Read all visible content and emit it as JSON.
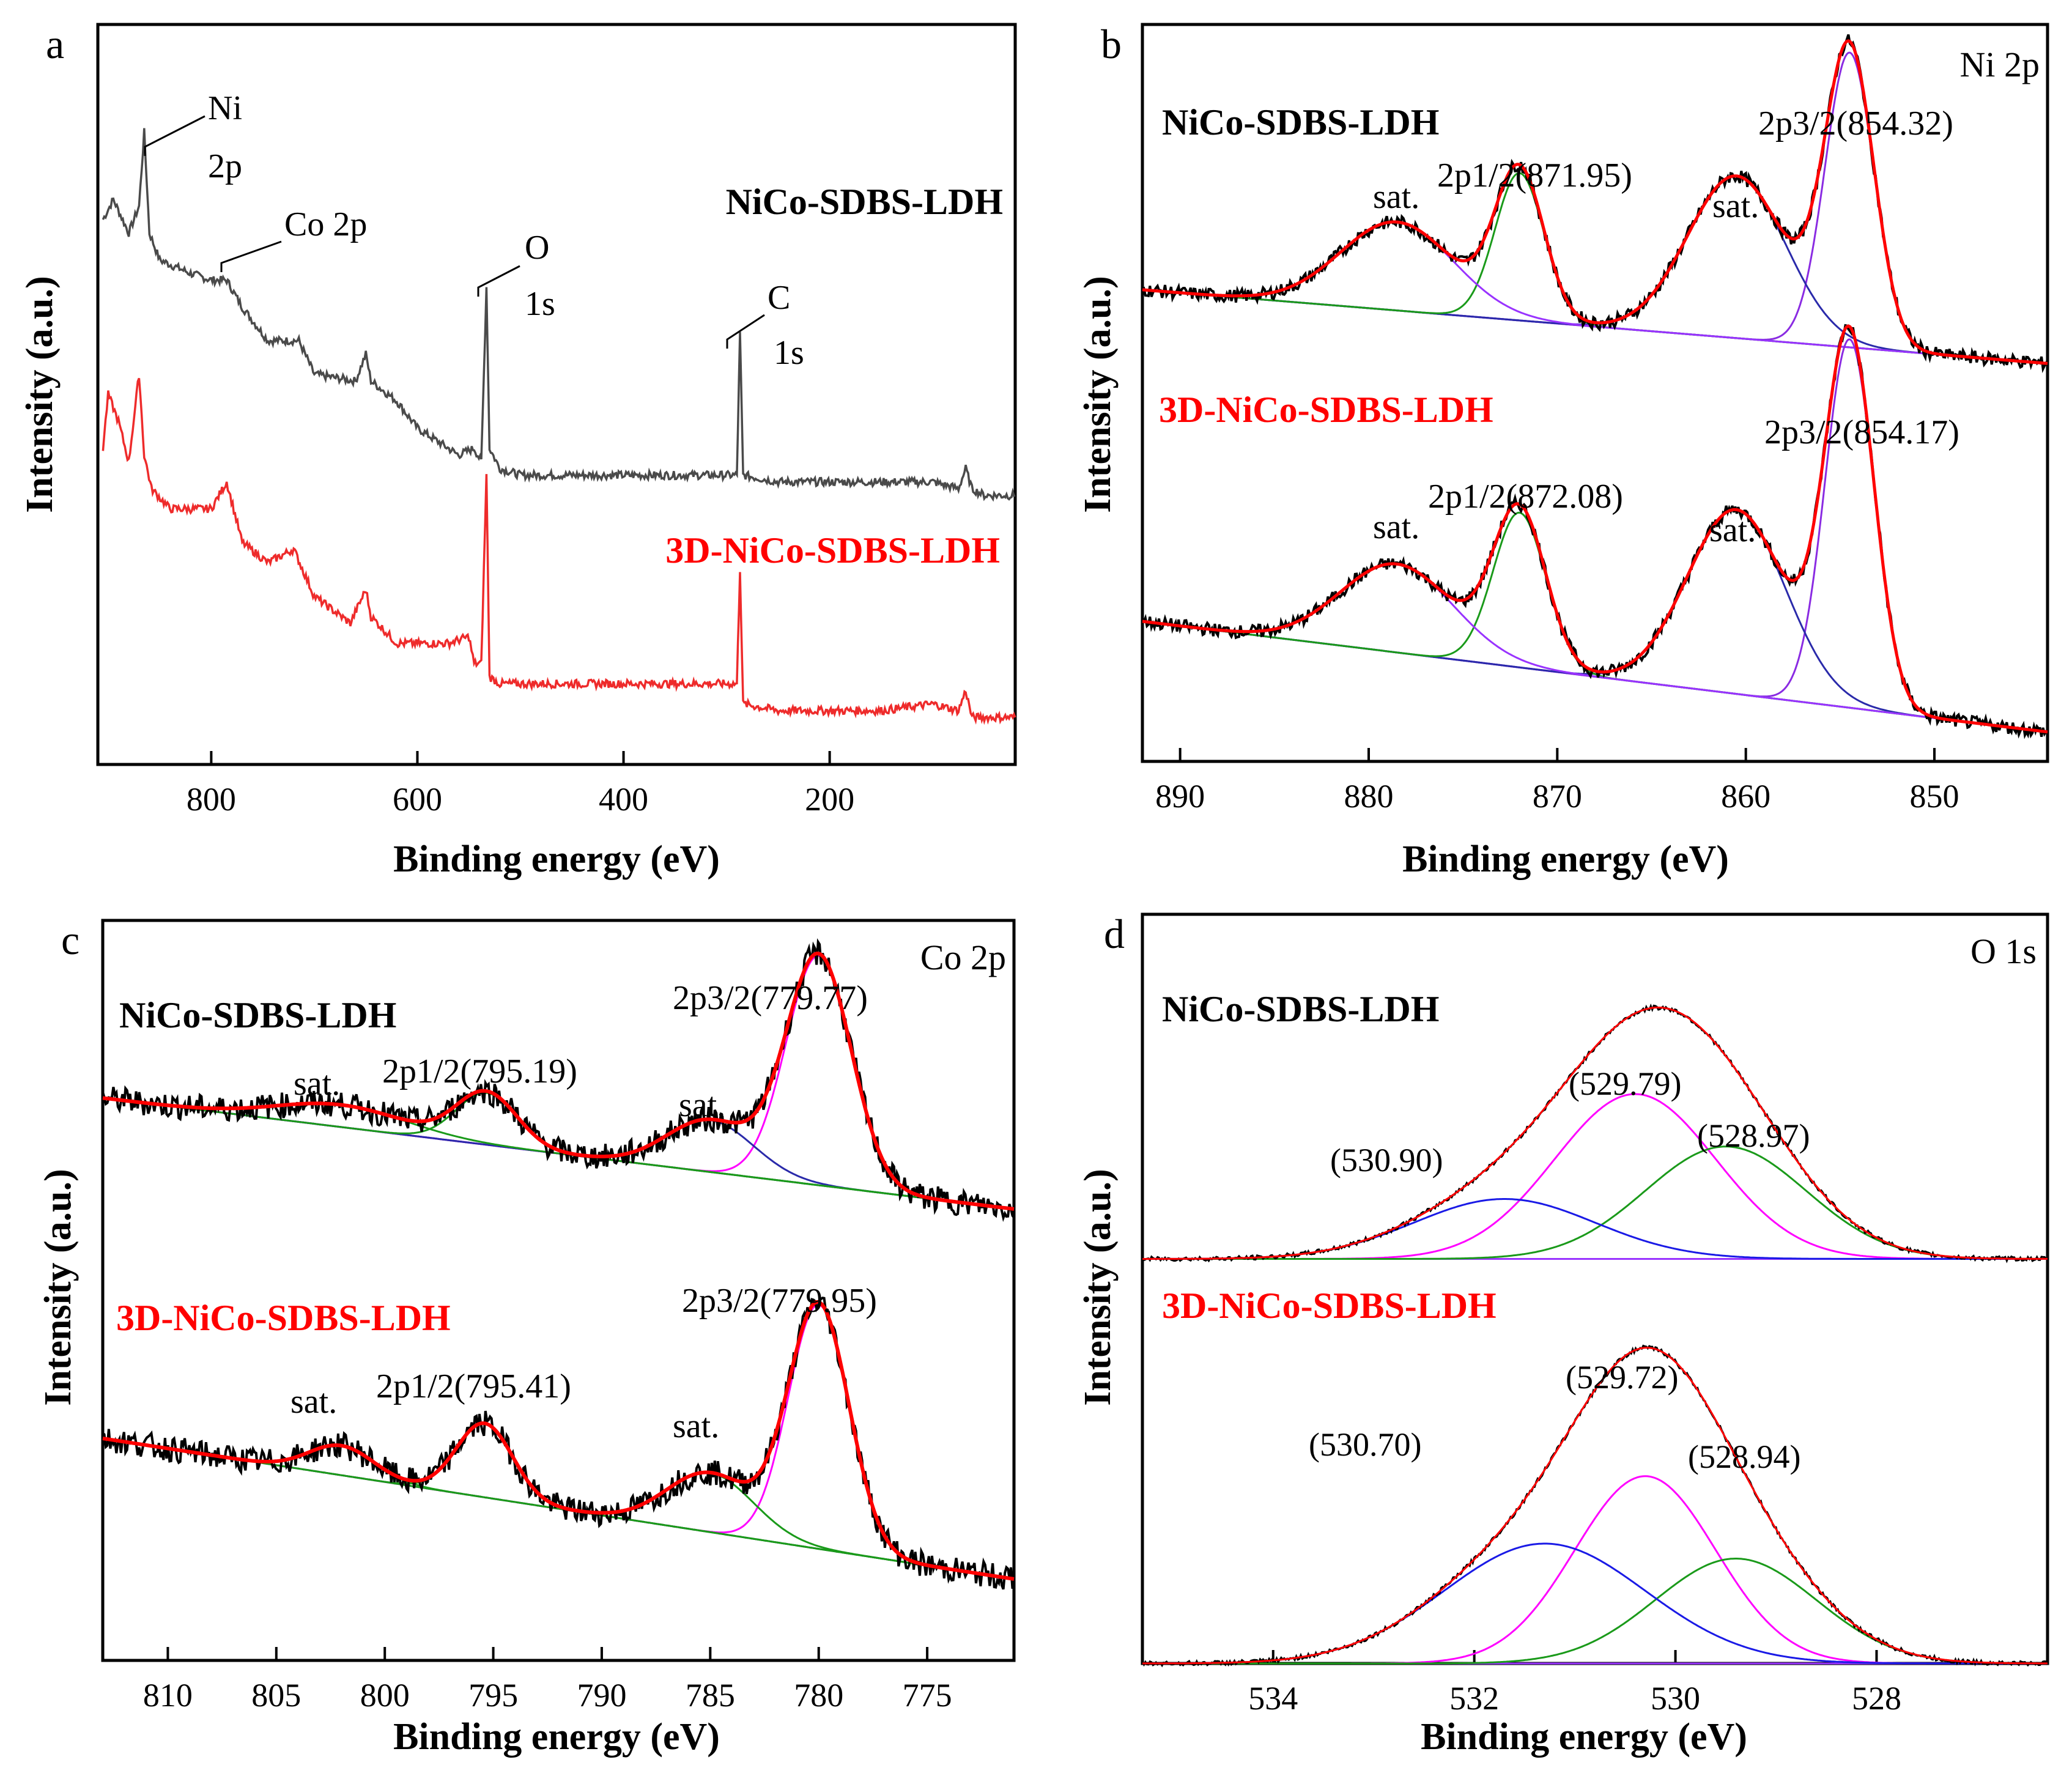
{
  "figure": {
    "background": "#ffffff"
  },
  "colors": {
    "black": "#000000",
    "dark": "#4a4a4a",
    "red": "#ee2b2b",
    "fit": "#ff0000",
    "green": "#1a9a1a",
    "magenta": "#ff00ff",
    "blue": "#1a1ae6",
    "purple": "#9933ff",
    "navy": "#2a2aaa"
  },
  "chart_data": [
    {
      "panel": "a",
      "type": "line",
      "xlabel": "Binding energy (eV)",
      "ylabel": "Intensity (a.u.)",
      "xlim": [
        910,
        20
      ],
      "ylim": [
        -0.05,
        1.05
      ],
      "xticks": [
        800,
        600,
        400,
        200
      ],
      "series": [
        {
          "name": "NiCo-SDBS-LDH",
          "color": "#4a4a4a",
          "points": [
            [
              905,
              0.76
            ],
            [
              895,
              0.79
            ],
            [
              880,
              0.74
            ],
            [
              870,
              0.78
            ],
            [
              865,
              0.89
            ],
            [
              860,
              0.74
            ],
            [
              850,
              0.7
            ],
            [
              820,
              0.68
            ],
            [
              800,
              0.67
            ],
            [
              785,
              0.67
            ],
            [
              770,
              0.63
            ],
            [
              745,
              0.58
            ],
            [
              715,
              0.58
            ],
            [
              700,
              0.53
            ],
            [
              660,
              0.52
            ],
            [
              650,
              0.56
            ],
            [
              645,
              0.52
            ],
            [
              620,
              0.49
            ],
            [
              600,
              0.45
            ],
            [
              580,
              0.43
            ],
            [
              560,
              0.41
            ],
            [
              545,
              0.42
            ],
            [
              538,
              0.4
            ],
            [
              533,
              0.66
            ],
            [
              530,
              0.42
            ],
            [
              520,
              0.39
            ],
            [
              500,
              0.38
            ],
            [
              450,
              0.38
            ],
            [
              400,
              0.38
            ],
            [
              350,
              0.38
            ],
            [
              300,
              0.38
            ],
            [
              290,
              0.38
            ],
            [
              287,
              0.59
            ],
            [
              284,
              0.38
            ],
            [
              250,
              0.37
            ],
            [
              200,
              0.37
            ],
            [
              150,
              0.37
            ],
            [
              100,
              0.37
            ],
            [
              75,
              0.36
            ],
            [
              68,
              0.39
            ],
            [
              62,
              0.36
            ],
            [
              50,
              0.35
            ],
            [
              20,
              0.35
            ]
          ]
        },
        {
          "name": "3D-NiCo-SDBS-LDH",
          "color": "#ee2b2b",
          "points": [
            [
              905,
              0.42
            ],
            [
              900,
              0.5
            ],
            [
              890,
              0.46
            ],
            [
              880,
              0.4
            ],
            [
              870,
              0.53
            ],
            [
              865,
              0.41
            ],
            [
              858,
              0.36
            ],
            [
              840,
              0.33
            ],
            [
              820,
              0.33
            ],
            [
              800,
              0.33
            ],
            [
              785,
              0.37
            ],
            [
              770,
              0.28
            ],
            [
              745,
              0.25
            ],
            [
              720,
              0.27
            ],
            [
              700,
              0.2
            ],
            [
              665,
              0.16
            ],
            [
              650,
              0.21
            ],
            [
              645,
              0.17
            ],
            [
              620,
              0.13
            ],
            [
              600,
              0.13
            ],
            [
              570,
              0.13
            ],
            [
              550,
              0.14
            ],
            [
              545,
              0.1
            ],
            [
              538,
              0.1
            ],
            [
              533,
              0.38
            ],
            [
              530,
              0.08
            ],
            [
              520,
              0.07
            ],
            [
              500,
              0.07
            ],
            [
              400,
              0.07
            ],
            [
              320,
              0.07
            ],
            [
              290,
              0.07
            ],
            [
              287,
              0.24
            ],
            [
              284,
              0.04
            ],
            [
              250,
              0.03
            ],
            [
              200,
              0.03
            ],
            [
              150,
              0.03
            ],
            [
              100,
              0.04
            ],
            [
              75,
              0.03
            ],
            [
              68,
              0.06
            ],
            [
              62,
              0.02
            ],
            [
              50,
              0.02
            ],
            [
              20,
              0.02
            ]
          ]
        }
      ],
      "annotations": [
        {
          "text": "Ni",
          "x": 865,
          "y": 0.89
        },
        {
          "text": "2p",
          "x": 865,
          "y": 0.89
        },
        {
          "text": "Co 2p",
          "x": 785,
          "y": 0.67
        },
        {
          "text": "O",
          "x": 533,
          "y": 0.66
        },
        {
          "text": "1s",
          "x": 533,
          "y": 0.66
        },
        {
          "text": "C",
          "x": 287,
          "y": 0.59
        },
        {
          "text": "1s",
          "x": 287,
          "y": 0.59
        }
      ],
      "labels": [
        "NiCo-SDBS-LDH",
        "3D-NiCo-SDBS-LDH"
      ],
      "panel_letter": "a"
    },
    {
      "panel": "b",
      "type": "line",
      "region": "Ni 2p",
      "xlabel": "Binding energy (eV)",
      "ylabel": "Intensity (a.u.)",
      "xlim": [
        892,
        844
      ],
      "ylim": [
        0,
        1
      ],
      "xticks": [
        890,
        880,
        870,
        860,
        850
      ],
      "samples": [
        {
          "name": "NiCo-SDBS-LDH",
          "offset": 0.52,
          "baseline": [
            0.12,
            0.02
          ],
          "peaks": [
            {
              "label": "2p3/2(854.32)",
              "center": 854.5,
              "height": 0.4,
              "width": 1.3,
              "color": "#8a2be2"
            },
            {
              "label": "sat.",
              "center": 860.5,
              "height": 0.22,
              "width": 2.6,
              "color": "#2a2aaa"
            },
            {
              "label": "2p1/2(871.95)",
              "center": 872.0,
              "height": 0.2,
              "width": 1.3,
              "color": "#1a9a1a"
            },
            {
              "label": "sat.",
              "center": 878.5,
              "height": 0.12,
              "width": 3.0,
              "color": "#9933ff"
            }
          ]
        },
        {
          "name": "3D-NiCo-SDBS-LDH",
          "offset": 0.0,
          "baseline": [
            0.19,
            0.04
          ],
          "peaks": [
            {
              "label": "2p3/2(854.17)",
              "center": 854.5,
              "height": 0.5,
              "width": 1.3,
              "color": "#8a2be2"
            },
            {
              "label": "sat.",
              "center": 860.5,
              "height": 0.25,
              "width": 2.6,
              "color": "#2a2aaa"
            },
            {
              "label": "2p1/2(872.08)",
              "center": 872.0,
              "height": 0.21,
              "width": 1.4,
              "color": "#1a9a1a"
            },
            {
              "label": "sat.",
              "center": 878.5,
              "height": 0.12,
              "width": 3.0,
              "color": "#9933ff"
            }
          ]
        }
      ],
      "labels": {
        "s1": "NiCo-SDBS-LDH",
        "s2": "3D-NiCo-SDBS-LDH",
        "s1_p1": "2p3/2(854.32)",
        "s1_p2": "2p1/2(871.95)",
        "s2_p1": "2p3/2(854.17)",
        "s2_p2": "2p1/2(872.08)",
        "sat": "sat."
      },
      "panel_letter": "b"
    },
    {
      "panel": "c",
      "type": "line",
      "region": "Co 2p",
      "xlabel": "Binding energy (eV)",
      "ylabel": "Intensity (a.u.)",
      "xlim": [
        813,
        771
      ],
      "ylim": [
        0,
        1
      ],
      "xticks": [
        810,
        805,
        800,
        795,
        790,
        785,
        780,
        775
      ],
      "samples": [
        {
          "name": "NiCo-SDBS-LDH",
          "offset": 0.5,
          "baseline": [
            0.26,
            0.11
          ],
          "peaks": [
            {
              "label": "2p3/2(779.77)",
              "center": 780.0,
              "height": 0.31,
              "width": 1.5,
              "color": "#ff00ff"
            },
            {
              "label": "sat.",
              "center": 785.0,
              "height": 0.07,
              "width": 2.0,
              "color": "#2a2aaa"
            },
            {
              "label": "2p1/2(795.19)",
              "center": 795.3,
              "height": 0.07,
              "width": 1.4,
              "color": "#1a9a1a"
            },
            {
              "label": "sat.",
              "center": 802.0,
              "height": 0.03,
              "width": 3.0,
              "color": "#1a9a1a"
            }
          ]
        },
        {
          "name": "3D-NiCo-SDBS-LDH",
          "offset": 0.0,
          "baseline": [
            0.3,
            0.11
          ],
          "peaks": [
            {
              "label": "2p3/2(779.95)",
              "center": 780.0,
              "height": 0.33,
              "width": 1.4,
              "color": "#ff00ff"
            },
            {
              "label": "sat.",
              "center": 785.0,
              "height": 0.08,
              "width": 2.0,
              "color": "#1a9a1a"
            },
            {
              "label": "2p1/2(795.41)",
              "center": 795.4,
              "height": 0.1,
              "width": 1.3,
              "color": "#1a9a1a"
            },
            {
              "label": "sat.",
              "center": 802.0,
              "height": 0.04,
              "width": 1.5,
              "color": "#1a9a1a"
            }
          ]
        }
      ],
      "labels": {
        "s1": "NiCo-SDBS-LDH",
        "s2": "3D-NiCo-SDBS-LDH",
        "s1_p1": "2p3/2(779.77)",
        "s1_p2": "2p1/2(795.19)",
        "s2_p1": "2p3/2(779.95)",
        "s2_p2": "2p1/2(795.41)",
        "sat": "sat."
      },
      "panel_letter": "c"
    },
    {
      "panel": "d",
      "type": "line",
      "region": "O 1s",
      "xlabel": "Binding energy (eV)",
      "ylabel": "Intensity (a.u.)",
      "xlim": [
        535.3,
        526.3
      ],
      "ylim": [
        0,
        1
      ],
      "xticks": [
        534,
        532,
        530,
        528
      ],
      "samples": [
        {
          "name": "NiCo-SDBS-LDH",
          "offset": 0.54,
          "baseline": [
            0.0,
            0.0
          ],
          "peaks": [
            {
              "label": "(529.79)",
              "center": 530.4,
              "height": 0.22,
              "width": 0.8,
              "color": "#ff00ff"
            },
            {
              "label": "(528.97)",
              "center": 529.5,
              "height": 0.15,
              "width": 0.8,
              "color": "#1a9a1a"
            },
            {
              "label": "(530.90)",
              "center": 531.7,
              "height": 0.08,
              "width": 0.9,
              "color": "#1a1ae6"
            }
          ]
        },
        {
          "name": "3D-NiCo-SDBS-LDH",
          "offset": 0.0,
          "baseline": [
            0.0,
            0.0
          ],
          "peaks": [
            {
              "label": "(529.72)",
              "center": 530.3,
              "height": 0.25,
              "width": 0.7,
              "color": "#ff00ff"
            },
            {
              "label": "(528.94)",
              "center": 529.4,
              "height": 0.14,
              "width": 0.8,
              "color": "#1a9a1a"
            },
            {
              "label": "(530.70)",
              "center": 531.3,
              "height": 0.16,
              "width": 1.0,
              "color": "#1a1ae6"
            }
          ]
        }
      ],
      "labels": {
        "s1": "NiCo-SDBS-LDH",
        "s2": "3D-NiCo-SDBS-LDH",
        "s1_p1": "(529.79)",
        "s1_p2": "(528.97)",
        "s1_p3": "(530.90)",
        "s2_p1": "(529.72)",
        "s2_p2": "(528.94)",
        "s2_p3": "(530.70)"
      },
      "panel_letter": "d"
    }
  ]
}
